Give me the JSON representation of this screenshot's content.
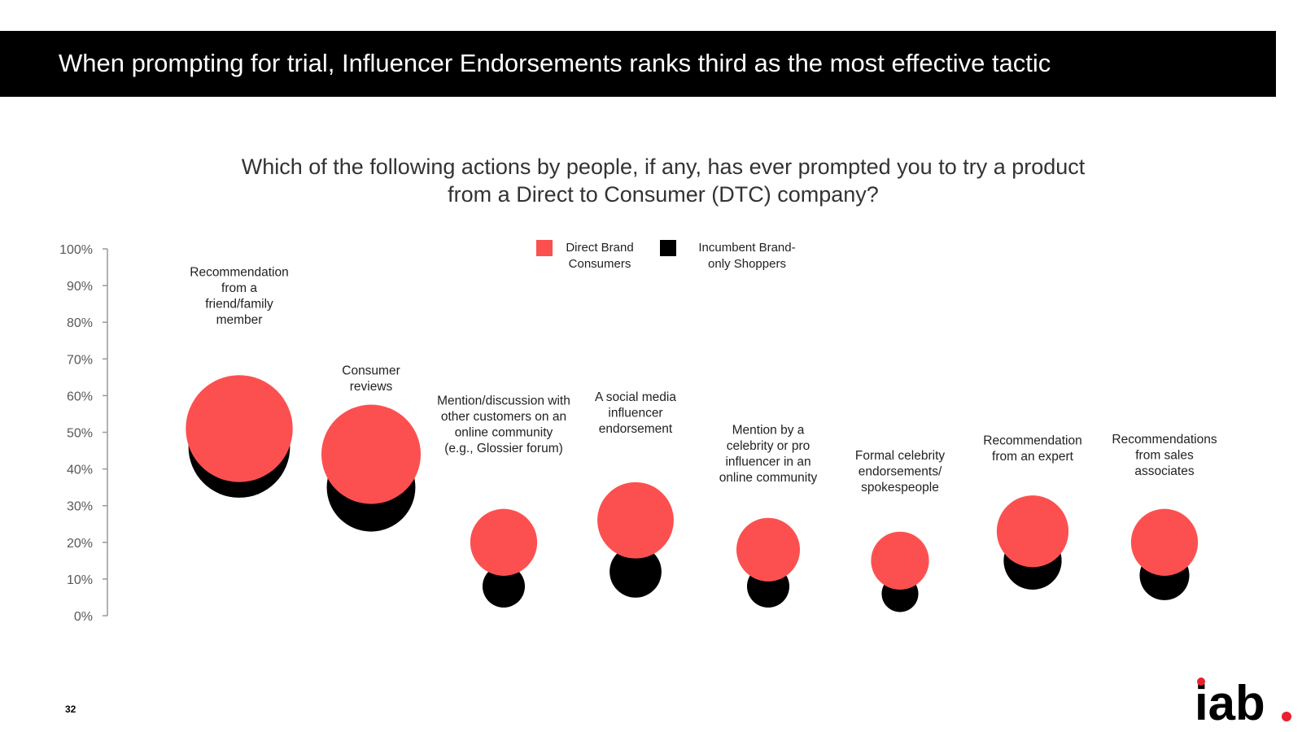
{
  "header": {
    "title": "When prompting for trial, Influencer Endorsements ranks third as the most effective tactic"
  },
  "question": {
    "line1": "Which of the following actions by people, if any, has ever prompted you to try a product",
    "line2": "from a Direct to Consumer (DTC) company?"
  },
  "colors": {
    "direct": "#fc5050",
    "incumbent": "#000000",
    "axis": "#999999",
    "label_text": "#222222"
  },
  "legend": [
    {
      "line1": "Direct Brand",
      "line2": "Consumers",
      "color": "#fc5050"
    },
    {
      "line1": "Incumbent Brand-",
      "line2": "only Shoppers",
      "color": "#000000"
    }
  ],
  "chart_data": {
    "type": "scatter",
    "title": "",
    "xlabel": "",
    "ylabel": "",
    "ylim": [
      0,
      100
    ],
    "y_ticks": [
      "0%",
      "10%",
      "20%",
      "30%",
      "40%",
      "50%",
      "60%",
      "70%",
      "80%",
      "90%",
      "100%"
    ],
    "marker_size_encodes_value": true,
    "categories": [
      [
        "Recommendation",
        "from a",
        "friend/family",
        "member"
      ],
      [
        "Consumer",
        "reviews"
      ],
      [
        "Mention/discussion with",
        "other customers on an",
        "online community",
        "(e.g., Glossier forum)"
      ],
      [
        "A social media",
        "influencer",
        "endorsement"
      ],
      [
        "Mention by a",
        "celebrity or pro",
        "influencer in an",
        "online community"
      ],
      [
        "Formal celebrity",
        "endorsements/",
        "spokespeople"
      ],
      [
        "Recommendation",
        "from an expert"
      ],
      [
        "Recommendations",
        "from sales",
        "associates"
      ]
    ],
    "series": [
      {
        "name": "Incumbent Brand-only Shoppers",
        "values": [
          46,
          35,
          8,
          12,
          8,
          6,
          15,
          11
        ]
      },
      {
        "name": "Direct Brand Consumers",
        "values": [
          51,
          44,
          20,
          26,
          18,
          15,
          23,
          20
        ]
      }
    ]
  },
  "footer": {
    "page_number": "32",
    "logo": {
      "text": "iab",
      "dot_color": "#e8212e"
    }
  }
}
